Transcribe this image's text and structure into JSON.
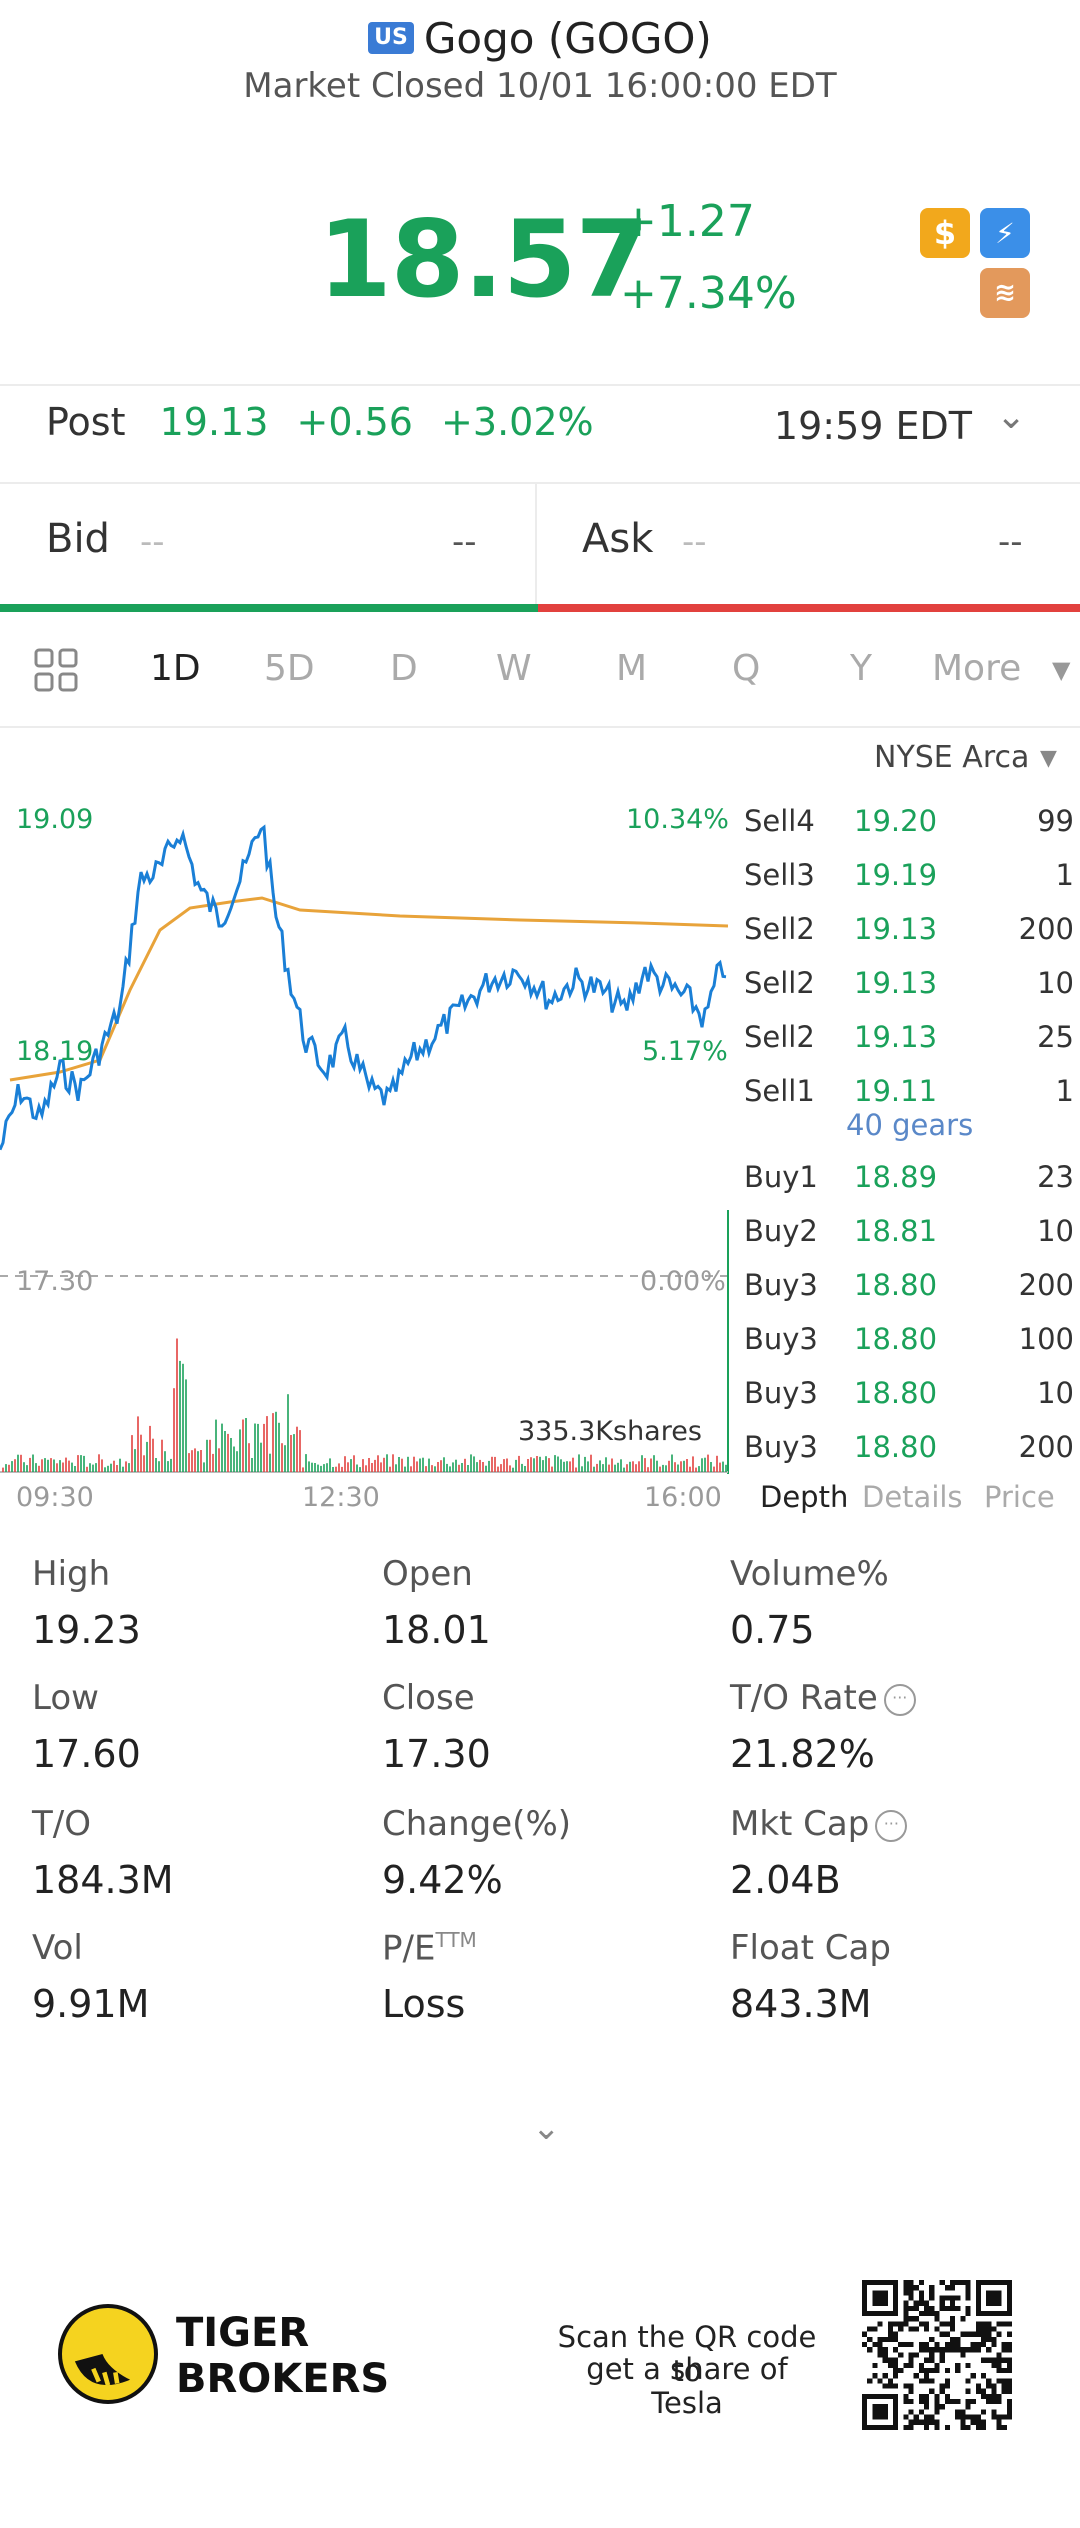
{
  "header": {
    "market_badge": "US",
    "title": "Gogo (GOGO)",
    "status": "Market Closed 10/01 16:00:00 EDT"
  },
  "quote": {
    "price": "18.57",
    "change": "+1.27",
    "change_pct": "+7.34%"
  },
  "post": {
    "label": "Post",
    "price": "19.13",
    "change": "+0.56",
    "change_pct": "+3.02%",
    "time": "19:59 EDT"
  },
  "bid_ask": {
    "bid_label": "Bid",
    "bid_sub": "--",
    "bid_value": "--",
    "ask_label": "Ask",
    "ask_sub": "--",
    "ask_value": "--"
  },
  "tabs": [
    "1D",
    "5D",
    "D",
    "W",
    "M",
    "Q",
    "Y",
    "More"
  ],
  "exchange": "NYSE Arca",
  "chart": {
    "high_price": "19.09",
    "high_pct": "10.34%",
    "low_price": "18.19",
    "low_pct": "5.17%",
    "ref_price": "17.30",
    "ref_pct": "0.00%",
    "volume_label": "335.3Kshares",
    "time_labels": [
      "09:30",
      "12:30",
      "16:00"
    ]
  },
  "order_book": {
    "sells": [
      {
        "side": "Sell4",
        "price": "19.20",
        "qty": "99"
      },
      {
        "side": "Sell3",
        "price": "19.19",
        "qty": "1"
      },
      {
        "side": "Sell2",
        "price": "19.13",
        "qty": "200"
      },
      {
        "side": "Sell2",
        "price": "19.13",
        "qty": "10"
      },
      {
        "side": "Sell2",
        "price": "19.13",
        "qty": "25"
      },
      {
        "side": "Sell1",
        "price": "19.11",
        "qty": "1"
      }
    ],
    "gears": "40 gears",
    "buys": [
      {
        "side": "Buy1",
        "price": "18.89",
        "qty": "23"
      },
      {
        "side": "Buy2",
        "price": "18.81",
        "qty": "10"
      },
      {
        "side": "Buy3",
        "price": "18.80",
        "qty": "200"
      },
      {
        "side": "Buy3",
        "price": "18.80",
        "qty": "100"
      },
      {
        "side": "Buy3",
        "price": "18.80",
        "qty": "10"
      },
      {
        "side": "Buy3",
        "price": "18.80",
        "qty": "200"
      }
    ],
    "tabs": [
      "Depth",
      "Details",
      "Price"
    ]
  },
  "stats": {
    "high_label": "High",
    "high": "19.23",
    "open_label": "Open",
    "open": "18.01",
    "volpct_label": "Volume%",
    "volpct": "0.75",
    "low_label": "Low",
    "low": "17.60",
    "close_label": "Close",
    "close": "17.30",
    "torate_label": "T/O Rate",
    "torate": "21.82%",
    "to_label": "T/O",
    "to": "184.3M",
    "changepct_label": "Change(%)",
    "changepct": "9.42%",
    "mktcap_label": "Mkt Cap",
    "mktcap": "2.04B",
    "vol_label": "Vol",
    "vol": "9.91M",
    "pe_label": "P/E",
    "pe_sup": "TTM",
    "pe": "Loss",
    "floatcap_label": "Float Cap",
    "floatcap": "843.3M"
  },
  "footer": {
    "brand_line1": "TIGER",
    "brand_line2": "BROKERS",
    "qr_line1": "Scan the QR code to",
    "qr_line2": "get a share of Tesla"
  },
  "colors": {
    "up": "#1aa15a",
    "down": "#e2413e",
    "price_line": "#1a7fd6",
    "avg_line": "#e8a33a"
  }
}
